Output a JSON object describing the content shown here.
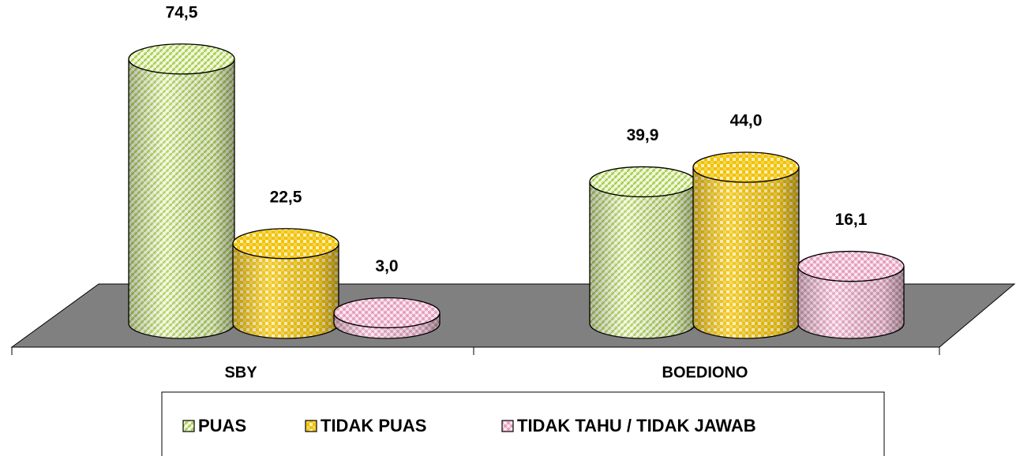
{
  "chart_data": {
    "type": "cylinder",
    "categories": [
      "SBY",
      "BOEDIONO"
    ],
    "series": [
      {
        "name": "PUAS",
        "color": "#c8e67a",
        "values": [
          74.5,
          39.9
        ],
        "value_labels": [
          "74,5",
          "39,9"
        ]
      },
      {
        "name": "TIDAK PUAS",
        "color": "#f2c200",
        "values": [
          22.5,
          44.0
        ],
        "value_labels": [
          "22,5",
          "44,0"
        ]
      },
      {
        "name": "TIDAK TAHU / TIDAK JAWAB",
        "color": "#f3b6cf",
        "values": [
          3.0,
          16.1
        ],
        "value_labels": [
          "3,0",
          "16,1"
        ]
      }
    ],
    "legend": "bottom"
  }
}
